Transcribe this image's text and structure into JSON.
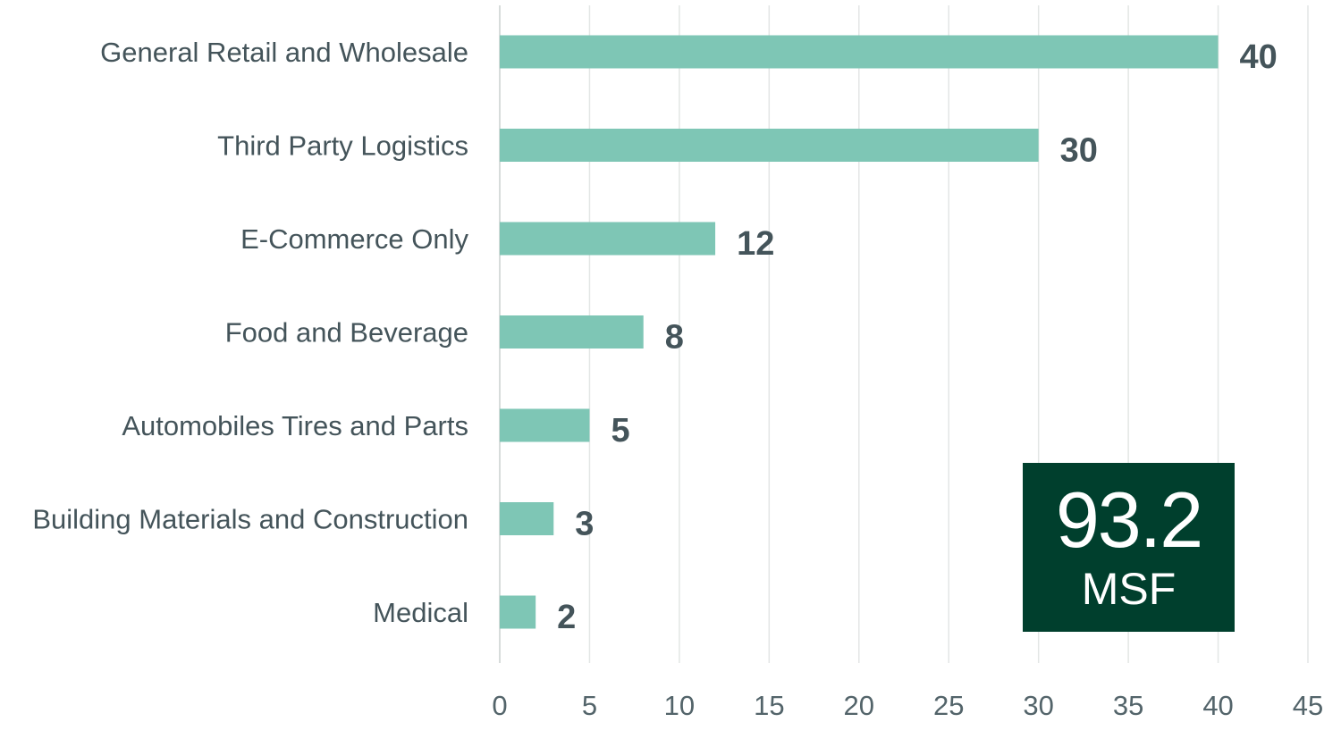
{
  "chart_data": {
    "type": "bar",
    "orientation": "horizontal",
    "categories": [
      "General Retail and Wholesale",
      "Third Party Logistics",
      "E-Commerce Only",
      "Food and Beverage",
      "Automobiles Tires and Parts",
      "Building Materials and Construction",
      "Medical"
    ],
    "values": [
      40,
      30,
      12,
      8,
      5,
      3,
      2
    ],
    "data_labels": [
      "40",
      "30",
      "12",
      "8",
      "5",
      "3",
      "2"
    ],
    "xlim": [
      0,
      45
    ],
    "x_ticks": [
      0,
      5,
      10,
      15,
      20,
      25,
      30,
      35,
      40,
      45
    ],
    "grid": "vertical",
    "legend": "none",
    "bar_color": "#7ec6b5"
  },
  "callout": {
    "value": "93.2",
    "unit": "MSF",
    "background": "#003f2d"
  }
}
